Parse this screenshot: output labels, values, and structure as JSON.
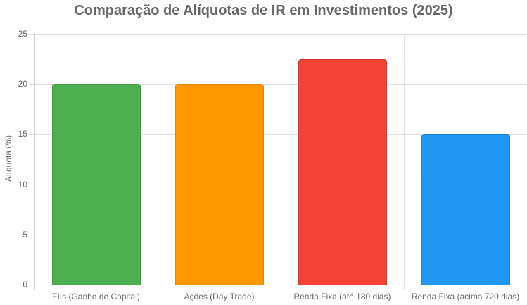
{
  "chart_data": {
    "type": "bar",
    "title": "Comparação de Alíquotas de IR em Investimentos (2025)",
    "xlabel": "",
    "ylabel": "Alíquota (%)",
    "ylim": [
      0,
      25
    ],
    "yticks": [
      "0",
      "5",
      "10",
      "15",
      "20",
      "25"
    ],
    "grid": true,
    "legend": "none",
    "categories": [
      "FIIs (Ganho de Capital)",
      "Ações (Day Trade)",
      "Renda Fixa (até 180 dias)",
      "Renda Fixa (acima 720 dias)"
    ],
    "values": [
      20,
      20,
      22.5,
      15
    ],
    "colors": [
      "#4caf50",
      "#ff9800",
      "#f44336",
      "#2196f3"
    ]
  }
}
